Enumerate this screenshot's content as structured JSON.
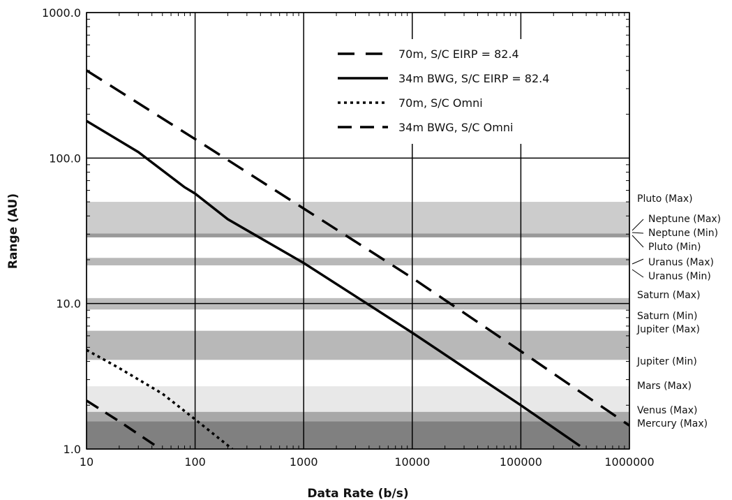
{
  "chart_data": {
    "type": "line",
    "xlabel": "Data Rate (b/s)",
    "ylabel": "Range (AU)",
    "xscale": "log",
    "yscale": "log",
    "xlim": [
      10,
      1000000
    ],
    "ylim": [
      1,
      1000
    ],
    "grid": true,
    "legend_position": "top-right",
    "x_ticks": [
      "10",
      "100",
      "1000",
      "10000",
      "100000",
      "1000000"
    ],
    "y_ticks": [
      "1.0",
      "10.0",
      "100.0",
      "1000.0"
    ],
    "series": [
      {
        "name": "70m, S/C EIRP = 82.4",
        "style": "long-dash",
        "points": [
          [
            10,
            400
          ],
          [
            100,
            135
          ],
          [
            1000,
            45
          ],
          [
            10000,
            15
          ],
          [
            100000,
            4.7
          ],
          [
            1000000,
            1.45
          ]
        ]
      },
      {
        "name": "34m BWG, S/C EIRP = 82.4",
        "style": "solid",
        "points": [
          [
            10,
            180
          ],
          [
            30,
            110
          ],
          [
            80,
            63
          ],
          [
            100,
            57
          ],
          [
            200,
            38
          ],
          [
            1000,
            19
          ],
          [
            10000,
            6.3
          ],
          [
            100000,
            2.0
          ],
          [
            350000,
            1.05
          ]
        ]
      },
      {
        "name": "70m, S/C Omni",
        "style": "dotted",
        "points": [
          [
            10,
            4.8
          ],
          [
            20,
            3.6
          ],
          [
            50,
            2.4
          ],
          [
            100,
            1.6
          ],
          [
            220,
            1.0
          ]
        ]
      },
      {
        "name": "34m BWG, S/C Omni",
        "style": "dash",
        "points": [
          [
            10,
            2.15
          ],
          [
            20,
            1.55
          ],
          [
            48,
            1.0
          ]
        ]
      }
    ],
    "bands": [
      {
        "from": 30.3,
        "to": 50,
        "color": "#cccccc"
      },
      {
        "from": 28.5,
        "to": 30.3,
        "color": "#999999"
      },
      {
        "from": 18.3,
        "to": 20.6,
        "color": "#b8b8b8"
      },
      {
        "from": 9.1,
        "to": 10.9,
        "color": "#bdbdbd"
      },
      {
        "from": 4.1,
        "to": 6.5,
        "color": "#b8b8b8"
      },
      {
        "from": 1.8,
        "to": 2.7,
        "color": "#e8e8e8"
      },
      {
        "from": 1.55,
        "to": 1.8,
        "color": "#a8a8a8"
      },
      {
        "from": 1.0,
        "to": 1.55,
        "color": "#808080"
      }
    ],
    "annotations": [
      {
        "label": "Pluto (Max)",
        "value": 50
      },
      {
        "label": "Neptune (Max)",
        "value": 30.3
      },
      {
        "label": "Neptune (Min)",
        "value": 29.8
      },
      {
        "label": "Pluto (Min)",
        "value": 29.5
      },
      {
        "label": "Uranus (Max)",
        "value": 20.6
      },
      {
        "label": "Uranus (Min)",
        "value": 18.3
      },
      {
        "label": "Saturn (Max)",
        "value": 10.9
      },
      {
        "label": "Saturn (Min)",
        "value": 9.1
      },
      {
        "label": "Jupiter (Max)",
        "value": 6.5
      },
      {
        "label": "Jupiter (Min)",
        "value": 4.1
      },
      {
        "label": "Mars (Max)",
        "value": 2.7
      },
      {
        "label": "Venus (Max)",
        "value": 1.8
      },
      {
        "label": "Mercury (Max)",
        "value": 1.5
      }
    ]
  }
}
